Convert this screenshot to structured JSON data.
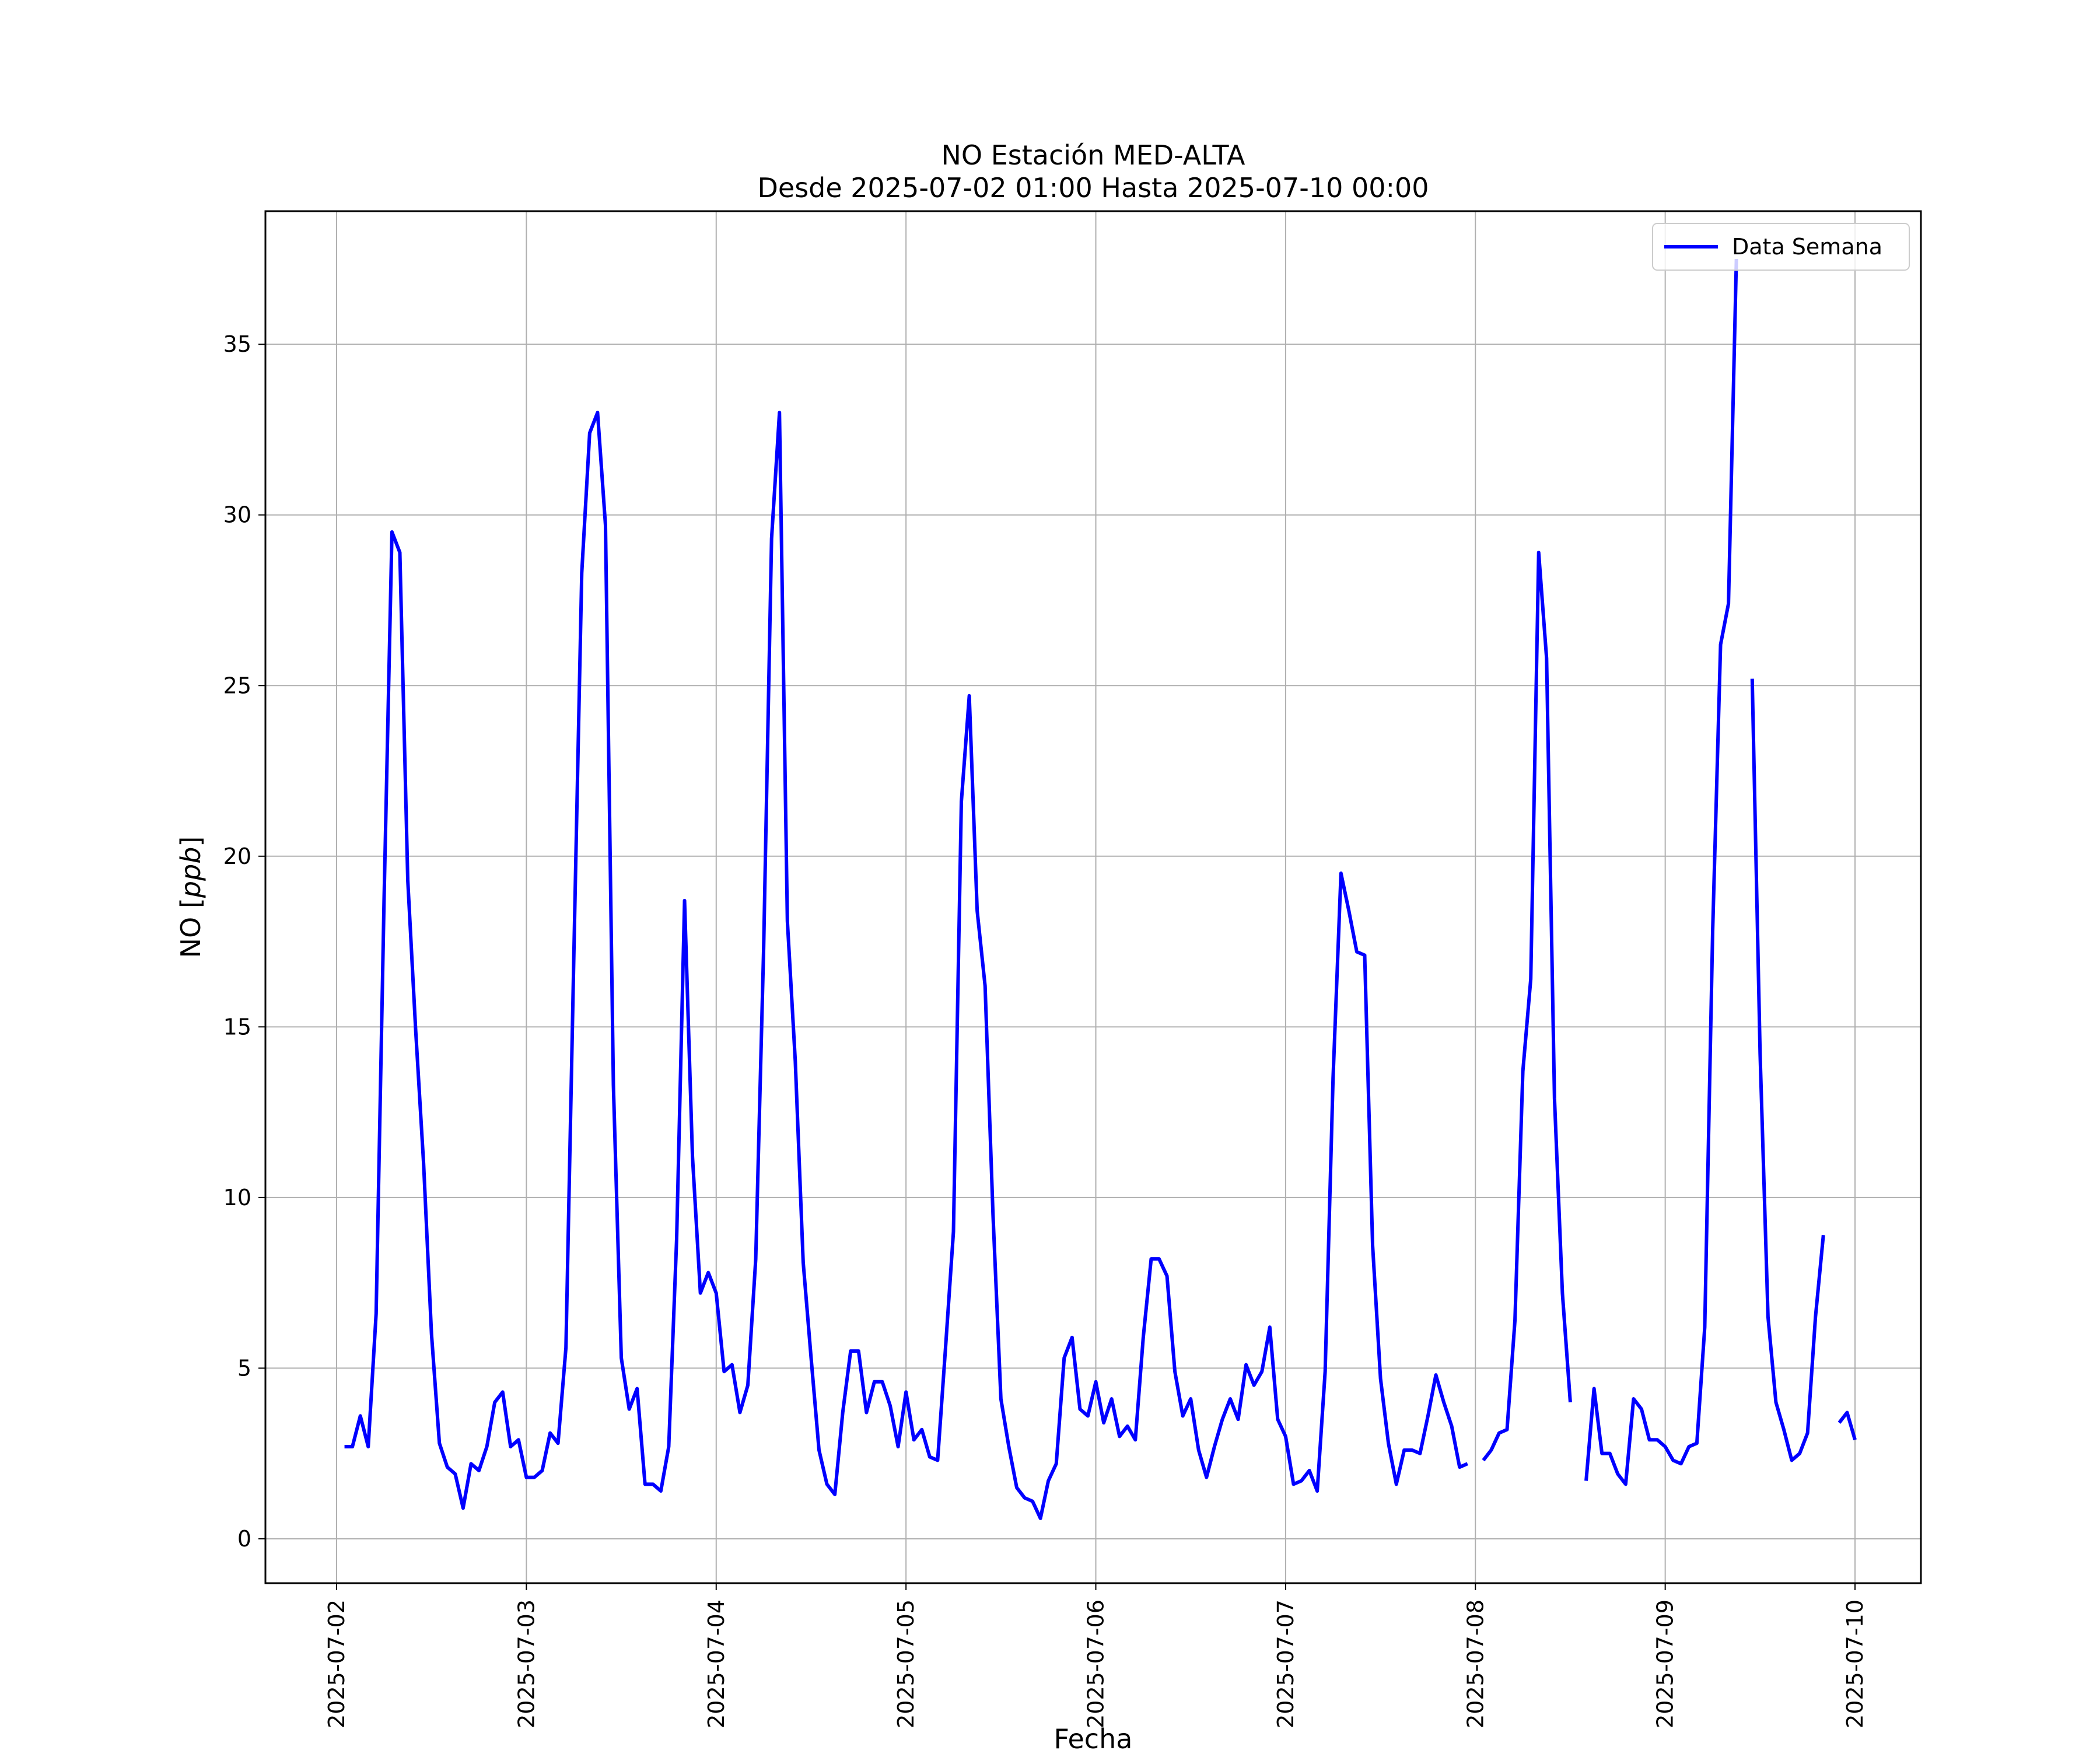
{
  "chart_data": {
    "type": "line",
    "title": "NO Estación MED-ALTA",
    "subtitle": "Desde 2025-07-02 01:00 Hasta 2025-07-10 00:00",
    "xlabel": "Fecha",
    "ylabel": "NO [ppb]",
    "ylabel_main": "NO [",
    "ylabel_unit": "ppb",
    "ylabel_close": "]",
    "x_tick_labels": [
      "2025-07-02",
      "2025-07-03",
      "2025-07-04",
      "2025-07-05",
      "2025-07-06",
      "2025-07-07",
      "2025-07-08",
      "2025-07-09",
      "2025-07-10"
    ],
    "y_ticks": [
      0,
      5,
      10,
      15,
      20,
      25,
      30,
      35
    ],
    "ylim": [
      -1.3,
      38.9
    ],
    "xlim": [
      "2025-07-01 15:00",
      "2025-07-10 08:20"
    ],
    "grid": true,
    "legend_position": "top-right",
    "color": "#0000ff",
    "series": [
      {
        "name": "Data Semana",
        "color": "#0000ff",
        "start": "2025-07-02 01:00",
        "step_hours": 1,
        "values": [
          2.7,
          2.7,
          3.6,
          2.7,
          6.6,
          18.7,
          29.5,
          28.9,
          19.3,
          14.9,
          11.0,
          6.0,
          2.8,
          2.1,
          1.9,
          0.9,
          2.2,
          2.0,
          2.7,
          4.0,
          4.3,
          2.7,
          2.9,
          1.8,
          1.8,
          2.0,
          3.1,
          2.8,
          5.6,
          17.1,
          28.3,
          32.4,
          33.0,
          29.7,
          13.3,
          5.3,
          3.8,
          4.4,
          1.6,
          1.6,
          1.4,
          2.7,
          8.8,
          18.7,
          11.2,
          7.2,
          7.8,
          7.2,
          4.9,
          5.1,
          3.7,
          4.5,
          8.2,
          17.3,
          29.3,
          33.0,
          18.1,
          14.0,
          8.1,
          5.3,
          2.6,
          1.6,
          1.3,
          3.7,
          5.5,
          5.5,
          3.7,
          4.6,
          4.6,
          3.9,
          2.7,
          4.3,
          2.9,
          3.2,
          2.4,
          2.3,
          5.6,
          9.0,
          21.6,
          24.7,
          18.4,
          16.2,
          9.5,
          4.1,
          2.7,
          1.5,
          1.2,
          1.1,
          0.6,
          1.7,
          2.2,
          5.3,
          5.9,
          3.8,
          3.6,
          4.6,
          3.4,
          4.1,
          3.0,
          3.3,
          2.9,
          5.9,
          8.2,
          8.2,
          7.7,
          4.9,
          3.6,
          4.1,
          2.6,
          1.8,
          2.7,
          3.5,
          4.1,
          3.5,
          5.1,
          4.5,
          4.9,
          6.2,
          3.5,
          3.0,
          1.6,
          1.7,
          2.0,
          1.4,
          4.9,
          13.5,
          19.5,
          18.4,
          17.2,
          17.1,
          8.6,
          4.7,
          2.8,
          1.6,
          2.6,
          2.6,
          2.5,
          3.6,
          4.8,
          4.0,
          3.3,
          2.1,
          2.2,
          null,
          2.3,
          2.6,
          3.1,
          3.2,
          6.4,
          13.7,
          16.4,
          28.9,
          25.8,
          12.9,
          7.2,
          4.0,
          null,
          1.7,
          4.4,
          2.5,
          2.5,
          1.9,
          1.6,
          4.1,
          3.8,
          2.9,
          2.9,
          2.7,
          2.3,
          2.2,
          2.7,
          2.8,
          6.2,
          17.8,
          26.2,
          27.4,
          37.5,
          null,
          25.2,
          14.2,
          6.5,
          4.0,
          3.2,
          2.3,
          2.5,
          3.1,
          6.5,
          8.9,
          null,
          3.4,
          3.7,
          2.9
        ]
      }
    ]
  }
}
